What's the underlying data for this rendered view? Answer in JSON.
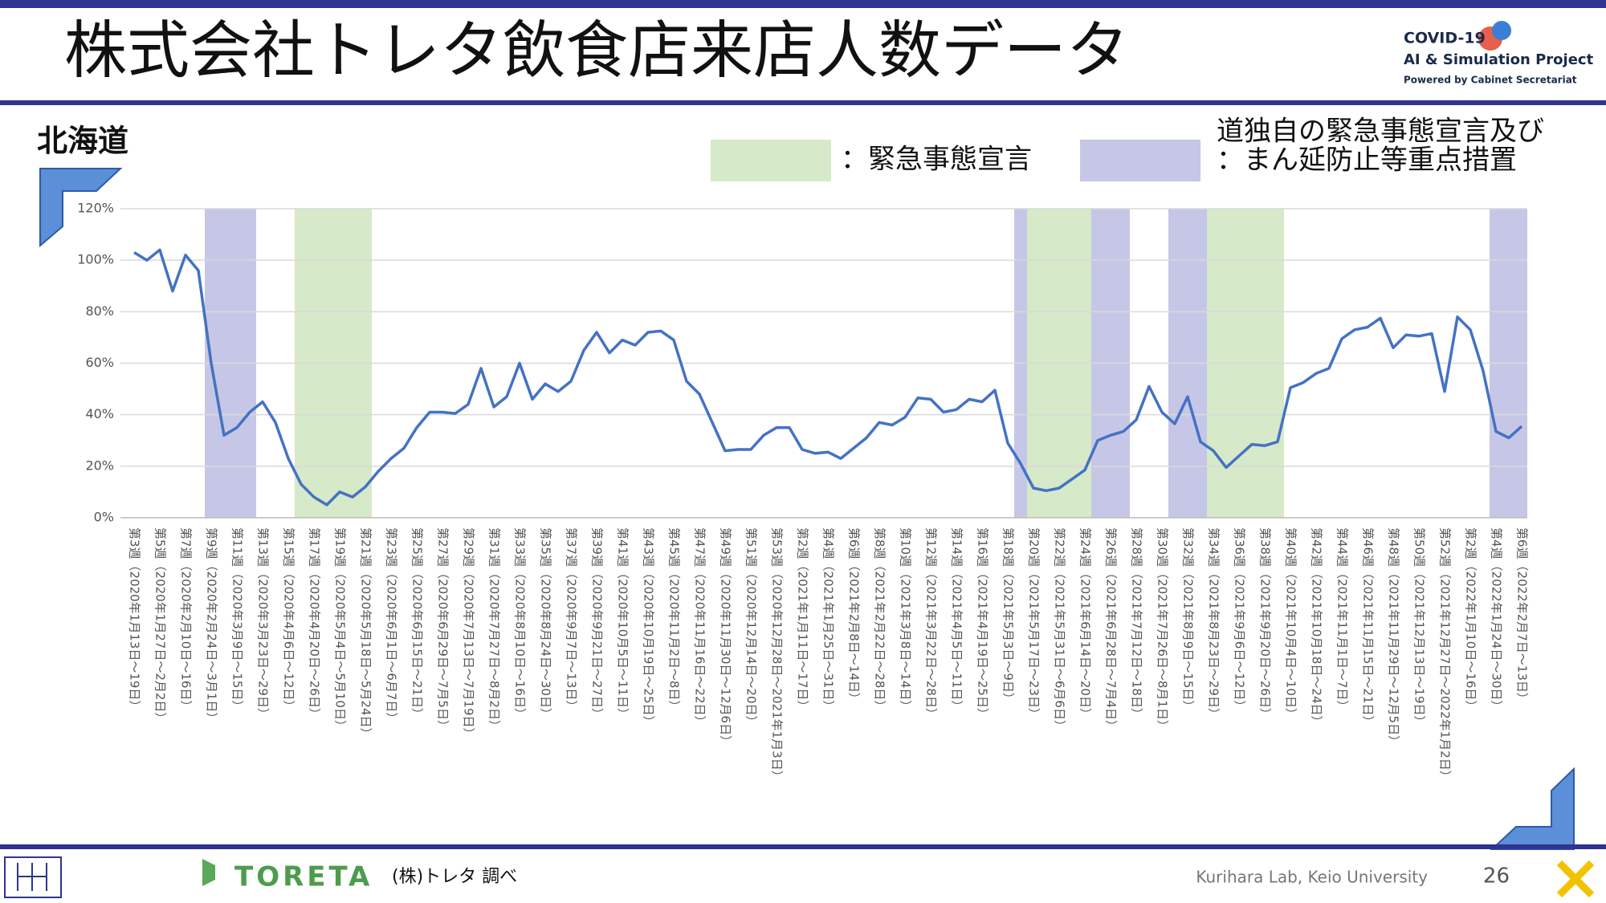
{
  "header": {
    "title": "株式会社トレタ飲食店来店人数データ",
    "logo": [
      "COVID-19",
      "AI & Simulation Project",
      "Powered by Cabinet Secretariat"
    ]
  },
  "region": "北海道",
  "chart_data": {
    "type": "line",
    "legend": [
      {
        "lines": [
          "：緊急事態宣言"
        ],
        "color": "#d6e9c8"
      },
      {
        "lines": [
          "道独自の緊急事態宣言及び",
          "：まん延防止等重点措置"
        ],
        "color": "#c6c7e6"
      }
    ],
    "shading": [
      {
        "legend": 1,
        "start": 6,
        "end": 9
      },
      {
        "legend": 0,
        "start": 13,
        "end": 18
      },
      {
        "legend": 1,
        "start": 69,
        "end": 69
      },
      {
        "legend": 0,
        "start": 70,
        "end": 74
      },
      {
        "legend": 1,
        "start": 75,
        "end": 77
      },
      {
        "legend": 1,
        "start": 81,
        "end": 83
      },
      {
        "legend": 0,
        "start": 84,
        "end": 89
      },
      {
        "legend": 1,
        "start": 106,
        "end": 108
      }
    ],
    "categories": [
      "第3週（2020年1月13日～19日）",
      null,
      "第5週（2020年1月27日～2月2日）",
      null,
      "第7週（2020年2月10日～16日）",
      null,
      "第9週（2020年2月24日～3月1日）",
      null,
      "第11週（2020年3月9日～15日）",
      null,
      "第13週（2020年3月23日～29日）",
      null,
      "第15週（2020年4月6日～12日）",
      null,
      "第17週（2020年4月20日～26日）",
      null,
      "第19週（2020年5月4日～5月10日）",
      null,
      "第21週（2020年5月18日～5月24日）",
      null,
      "第23週（2020年6月1日～6月7日）",
      null,
      "第25週（2020年6月15日～21日）",
      null,
      "第27週（2020年6月29日～7月5日）",
      null,
      "第29週（2020年7月13日～7月19日）",
      null,
      "第31週（2020年7月27日～8月2日）",
      null,
      "第33週（2020年8月10日～16日）",
      null,
      "第35週（2020年8月24日～30日）",
      null,
      "第37週（2020年9月7日～13日）",
      null,
      "第39週（2020年9月21日～27日）",
      null,
      "第41週（2020年10月5日～11日）",
      null,
      "第43週（2020年10月19日～25日）",
      null,
      "第45週（2020年11月2日～8日）",
      null,
      "第47週（2020年11月16日～22日）",
      null,
      "第49週（2020年11月30日～12月6日）",
      null,
      "第51週（2020年12月14日～20日）",
      null,
      "第53週（2020年12月28日～2021年1月3日）",
      null,
      "第2週（2021年1月11日～17日）",
      null,
      "第4週（2021年1月25日～31日）",
      null,
      "第6週（2021年2月8日～14日）",
      null,
      "第8週（2021年2月22日～28日）",
      null,
      "第10週（2021年3月8日～14日）",
      null,
      "第12週（2021年3月22日～28日）",
      null,
      "第14週（2021年4月5日～11日）",
      null,
      "第16週（2021年4月19日～25日）",
      null,
      "第18週（2021年5月3日～9日）",
      null,
      "第20週（2021年5月17日～23日）",
      null,
      "第22週（2021年5月31日～6月6日）",
      null,
      "第24週（2021年6月14日～20日）",
      null,
      "第26週（2021年6月28日～7月4日）",
      null,
      "第28週（2021年7月12日～18日）",
      null,
      "第30週（2021年7月26日～8月1日）",
      null,
      "第32週（2021年8月9日～15日）",
      null,
      "第34週（2021年8月23日～29日）",
      null,
      "第36週（2021年9月6日～12日）",
      null,
      "第38週（2021年9月20日～26日）",
      null,
      "第40週（2021年10月4日～10日）",
      null,
      "第42週（2021年10月18日～24日）",
      null,
      "第44週（2021年11月1日～7日）",
      null,
      "第46週（2021年11月15日～21日）",
      null,
      "第48週（2021年11月29日～12月5日）",
      null,
      "第50週（2021年12月13日～19日）",
      null,
      "第52週（2021年12月27日～2022年1月2日）",
      null,
      "第2週（2022年1月10日～16日）",
      null,
      "第4週（2022年1月24日～30日）",
      null,
      "第6週（2022年2月7日～13日）"
    ],
    "series": [
      {
        "color": "#4472c4",
        "values": [
          103,
          100,
          104,
          88,
          102,
          96,
          60,
          32,
          35,
          41,
          45,
          37,
          23,
          13,
          8,
          5,
          10,
          8,
          12,
          18,
          23,
          27,
          35,
          41,
          41,
          40.5,
          44,
          58,
          43,
          47,
          60,
          46,
          52,
          49,
          53,
          65,
          72,
          64,
          69,
          67,
          72,
          72.5,
          69,
          53,
          48,
          37,
          26,
          26.5,
          26.5,
          32,
          35,
          35,
          26.5,
          25,
          25.5,
          23,
          27,
          31,
          37,
          36,
          39,
          46.5,
          46,
          41,
          42,
          46,
          45,
          49.5,
          29,
          21,
          11.5,
          10.5,
          11.5,
          15,
          18.5,
          30,
          32,
          33.5,
          38,
          51,
          41,
          36.5,
          47,
          29.5,
          26,
          19.5,
          24,
          28.5,
          28,
          29.5,
          50.5,
          52.5,
          56,
          58,
          69.5,
          73,
          74,
          77.5,
          66,
          71,
          70.5,
          71.5,
          49,
          78,
          73,
          57,
          33.5,
          31,
          35.5
        ]
      }
    ],
    "ylim": [
      0,
      120
    ],
    "yticks": [
      {
        "value": 0,
        "label": "0%"
      },
      {
        "value": 20,
        "label": "20%"
      },
      {
        "value": 40,
        "label": "40%"
      },
      {
        "value": 60,
        "label": "60%"
      },
      {
        "value": 80,
        "label": "80%"
      },
      {
        "value": 100,
        "label": "100%"
      },
      {
        "value": 120,
        "label": "120%"
      }
    ],
    "grid": true
  },
  "footer": {
    "brand": "TORETA",
    "source": "(株)トレタ 調べ",
    "lab": "Kurihara Lab, Keio University",
    "page": "26"
  }
}
